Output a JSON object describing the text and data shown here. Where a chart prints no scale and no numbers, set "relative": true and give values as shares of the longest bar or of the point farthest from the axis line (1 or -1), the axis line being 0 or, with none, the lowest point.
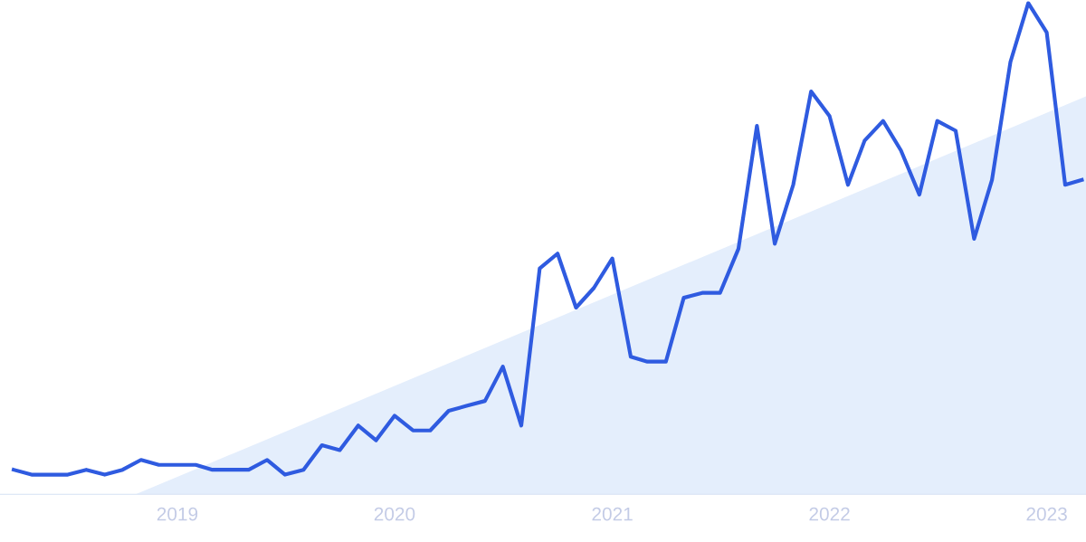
{
  "chart_data": {
    "type": "line",
    "relative": true,
    "tick_labels": "x",
    "line_style": "solid",
    "marker": "none",
    "xlim": [
      "2018-03-09",
      "2023-03-08"
    ],
    "xticks": [
      {
        "value": "2019",
        "label": "2019"
      },
      {
        "value": "2020",
        "label": "2020"
      },
      {
        "value": "2021",
        "label": "2021"
      },
      {
        "value": "2022",
        "label": "2022"
      },
      {
        "value": "2023",
        "label": "2023"
      }
    ],
    "series": [
      {
        "type": "area",
        "color": "#e4eefc",
        "x": [
          "2018-10-23",
          "2023-03-08"
        ],
        "values": [
          0,
          0.81
        ]
      },
      {
        "color": "#2f5be0",
        "x": [
          "2018-04",
          "2018-05",
          "2018-06",
          "2018-07",
          "2018-08",
          "2018-09",
          "2018-10",
          "2018-11",
          "2018-12",
          "2019-01",
          "2019-02",
          "2019-03",
          "2019-04",
          "2019-05",
          "2019-06",
          "2019-07",
          "2019-08",
          "2019-09",
          "2019-10",
          "2019-11",
          "2019-12",
          "2020-01",
          "2020-02",
          "2020-03",
          "2020-04",
          "2020-05",
          "2020-06",
          "2020-07",
          "2020-08",
          "2020-09",
          "2020-10",
          "2020-11",
          "2020-12",
          "2021-01",
          "2021-02",
          "2021-03",
          "2021-04",
          "2021-05",
          "2021-06",
          "2021-07",
          "2021-08",
          "2021-09",
          "2021-10",
          "2021-11",
          "2021-12",
          "2022-01",
          "2022-02",
          "2022-03",
          "2022-04",
          "2022-05",
          "2022-06",
          "2022-07",
          "2022-08",
          "2022-09",
          "2022-10",
          "2022-11",
          "2022-12",
          "2023-01",
          "2023-02",
          "2023-03"
        ],
        "values": [
          0.05,
          0.04,
          0.04,
          0.04,
          0.05,
          0.04,
          0.05,
          0.07,
          0.06,
          0.06,
          0.06,
          0.05,
          0.05,
          0.05,
          0.07,
          0.04,
          0.05,
          0.1,
          0.09,
          0.14,
          0.11,
          0.16,
          0.13,
          0.13,
          0.17,
          0.18,
          0.19,
          0.26,
          0.14,
          0.46,
          0.49,
          0.38,
          0.42,
          0.48,
          0.28,
          0.27,
          0.27,
          0.4,
          0.41,
          0.41,
          0.5,
          0.75,
          0.51,
          0.63,
          0.82,
          0.77,
          0.63,
          0.72,
          0.76,
          0.7,
          0.61,
          0.76,
          0.74,
          0.52,
          0.64,
          0.88,
          1.0,
          0.94,
          0.63,
          0.64
        ]
      }
    ]
  }
}
